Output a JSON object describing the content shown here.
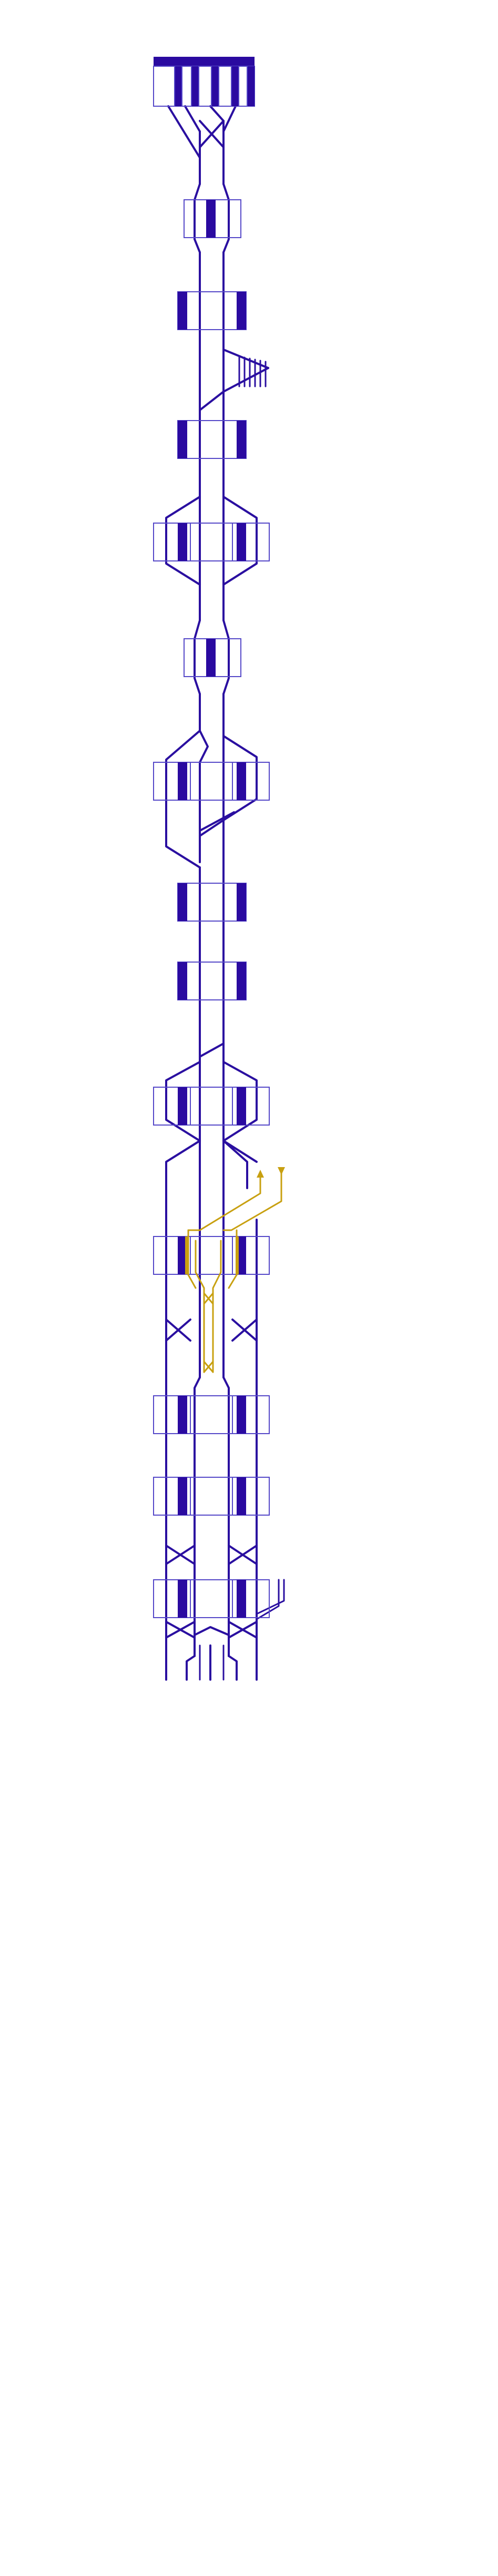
{
  "diagram": {
    "kind": "railway-track-schematic",
    "colors": {
      "track": "#2a0fa0",
      "platform_fill": "#2a0aa0",
      "platform_outline": "#5548c8",
      "background": "#ffffff",
      "highlight": "#c8a010"
    },
    "stations": [
      {
        "id": "terminus",
        "layout": "terminus-4-bays"
      },
      {
        "id": "st-2",
        "layout": "island-single"
      },
      {
        "id": "st-3",
        "layout": "side-pair"
      },
      {
        "id": "st-4",
        "layout": "side-pair"
      },
      {
        "id": "st-5",
        "layout": "four-track-side"
      },
      {
        "id": "st-6",
        "layout": "island-single"
      },
      {
        "id": "st-7",
        "layout": "four-track-side"
      },
      {
        "id": "st-8",
        "layout": "side-pair"
      },
      {
        "id": "st-9",
        "layout": "side-pair"
      },
      {
        "id": "st-10",
        "layout": "four-track-side"
      },
      {
        "id": "st-11",
        "layout": "four-track-side",
        "highlighted": true
      },
      {
        "id": "st-12",
        "layout": "four-track-side"
      },
      {
        "id": "st-13",
        "layout": "four-track-side"
      },
      {
        "id": "st-14",
        "layout": "four-track-side"
      }
    ],
    "highlighted_route": {
      "direction_markers": [
        "up-arrow",
        "down-arrow"
      ]
    }
  }
}
